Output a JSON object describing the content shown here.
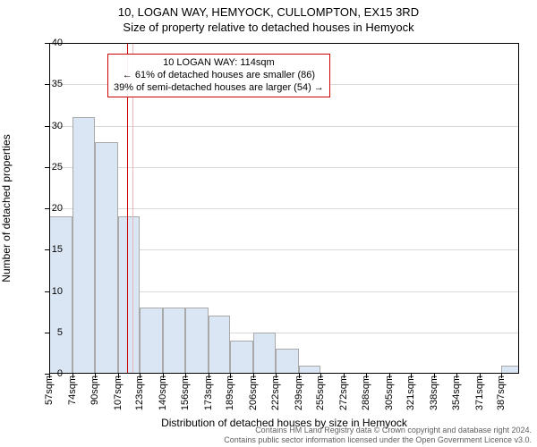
{
  "titles": {
    "main": "10, LOGAN WAY, HEMYOCK, CULLOMPTON, EX15 3RD",
    "sub": "Size of property relative to detached houses in Hemyock"
  },
  "axes": {
    "y_label": "Number of detached properties",
    "x_label": "Distribution of detached houses by size in Hemyock"
  },
  "chart": {
    "type": "histogram",
    "background_color": "#ffffff",
    "border_color": "#000000",
    "grid_color": "#d9d9d9",
    "bar_fill": "#dbe6f4",
    "bar_border": "#a9a9a9",
    "ylim": [
      0,
      40
    ],
    "ytick_step": 5,
    "yticks": [
      0,
      5,
      10,
      15,
      20,
      25,
      30,
      35,
      40
    ],
    "xticks": [
      57,
      74,
      90,
      107,
      123,
      140,
      156,
      173,
      189,
      206,
      222,
      239,
      255,
      272,
      288,
      305,
      321,
      338,
      354,
      371,
      387
    ],
    "xtick_suffix": "sqm",
    "xlim": [
      57,
      400
    ],
    "bars": [
      {
        "x0": 57,
        "x1": 74,
        "count": 19
      },
      {
        "x0": 74,
        "x1": 90,
        "count": 31
      },
      {
        "x0": 90,
        "x1": 107,
        "count": 28
      },
      {
        "x0": 107,
        "x1": 123,
        "count": 19
      },
      {
        "x0": 123,
        "x1": 140,
        "count": 8
      },
      {
        "x0": 140,
        "x1": 156,
        "count": 8
      },
      {
        "x0": 156,
        "x1": 173,
        "count": 8
      },
      {
        "x0": 173,
        "x1": 189,
        "count": 7
      },
      {
        "x0": 189,
        "x1": 206,
        "count": 4
      },
      {
        "x0": 206,
        "x1": 222,
        "count": 5
      },
      {
        "x0": 222,
        "x1": 239,
        "count": 3
      },
      {
        "x0": 239,
        "x1": 255,
        "count": 1
      },
      {
        "x0": 255,
        "x1": 272,
        "count": 0
      },
      {
        "x0": 272,
        "x1": 288,
        "count": 0
      },
      {
        "x0": 288,
        "x1": 305,
        "count": 0
      },
      {
        "x0": 305,
        "x1": 321,
        "count": 0
      },
      {
        "x0": 321,
        "x1": 338,
        "count": 0
      },
      {
        "x0": 338,
        "x1": 354,
        "count": 0
      },
      {
        "x0": 354,
        "x1": 371,
        "count": 0
      },
      {
        "x0": 371,
        "x1": 387,
        "count": 0
      },
      {
        "x0": 387,
        "x1": 400,
        "count": 1
      }
    ],
    "reference_lines": [
      {
        "x": 114,
        "color": "#cc0000",
        "width": 1
      },
      {
        "x": 118,
        "color": "#e6b8b8",
        "width": 1
      }
    ],
    "annotation": {
      "line1": "10 LOGAN WAY: 114sqm",
      "line2": "← 61% of detached houses are smaller (86)",
      "line3": "39% of semi-detached houses are larger (54) →",
      "border_color": "#cc0000",
      "fontsize": 11
    }
  },
  "footer": {
    "line1": "Contains HM Land Registry data © Crown copyright and database right 2024.",
    "line2": "Contains public sector information licensed under the Open Government Licence v3.0."
  }
}
